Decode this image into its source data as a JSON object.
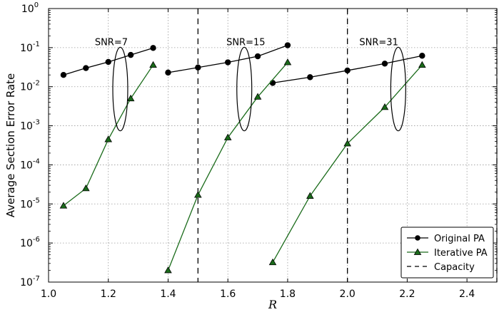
{
  "chart_data": {
    "type": "line",
    "title": "",
    "xlabel": "R",
    "ylabel": "Average Section Error Rate",
    "xlim": [
      1.0,
      2.5
    ],
    "ylim_exponent": [
      -7,
      0
    ],
    "yscale": "log",
    "grid": true,
    "legend_position": "bottom-right",
    "x_ticks": [
      "1.0",
      "1.2",
      "1.4",
      "1.6",
      "1.8",
      "2.0",
      "2.2",
      "2.4"
    ],
    "y_tick_base": "10",
    "y_tick_exponents": [
      "-7",
      "-6",
      "-5",
      "-4",
      "-3",
      "-2",
      "-1",
      "0"
    ],
    "series": [
      {
        "name": "Original PA",
        "color": "#000000",
        "marker": "circle",
        "groups": [
          {
            "x": [
              1.05,
              1.125,
              1.2,
              1.275,
              1.35
            ],
            "y": [
              0.02,
              0.03,
              0.043,
              0.065,
              0.098
            ]
          },
          {
            "x": [
              1.4,
              1.5,
              1.6,
              1.7,
              1.8
            ],
            "y": [
              0.023,
              0.031,
              0.042,
              0.06,
              0.115
            ]
          },
          {
            "x": [
              1.75,
              1.875,
              2.0,
              2.125,
              2.25
            ],
            "y": [
              0.0125,
              0.0175,
              0.026,
              0.039,
              0.062
            ]
          }
        ]
      },
      {
        "name": "Iterative PA",
        "color": "#1a6b1a",
        "marker": "triangle",
        "groups": [
          {
            "x": [
              1.05,
              1.125,
              1.2,
              1.275,
              1.35
            ],
            "y": [
              9e-06,
              2.5e-05,
              0.00045,
              0.005,
              0.036
            ]
          },
          {
            "x": [
              1.4,
              1.5,
              1.6,
              1.7,
              1.8
            ],
            "y": [
              2e-07,
              1.7e-05,
              0.0005,
              0.0055,
              0.042
            ]
          },
          {
            "x": [
              1.75,
              1.875,
              2.0,
              2.125,
              2.25
            ],
            "y": [
              3.2e-07,
              1.6e-05,
              0.00035,
              0.003,
              0.036
            ]
          }
        ]
      },
      {
        "name": "Capacity",
        "color": "#000000",
        "style": "dashed",
        "vertical_x": [
          1.5,
          2.0,
          2.5
        ]
      }
    ],
    "annotations": [
      {
        "text": "SNR=7",
        "x": 1.21,
        "y": 0.115,
        "ellipse": {
          "cx": 1.24,
          "cy_log": -2.06,
          "rx": 0.025,
          "ry_log": 1.07
        }
      },
      {
        "text": "SNR=15",
        "x": 1.66,
        "y": 0.115,
        "ellipse": {
          "cx": 1.655,
          "cy_log": -2.06,
          "rx": 0.025,
          "ry_log": 1.07
        }
      },
      {
        "text": "SNR=31",
        "x": 2.105,
        "y": 0.115,
        "ellipse": {
          "cx": 2.17,
          "cy_log": -2.06,
          "rx": 0.025,
          "ry_log": 1.07
        }
      }
    ]
  }
}
